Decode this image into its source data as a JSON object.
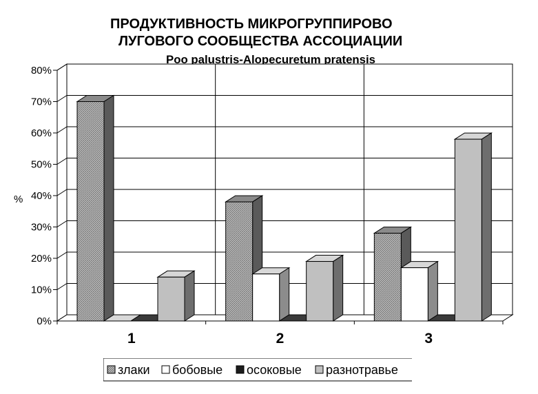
{
  "chart_data": {
    "type": "bar",
    "title_line1": "ПРОДУКТИВНОСТЬ МИКРОГРУППИРОВО",
    "title_line2": "ЛУГОВОГО СООБЩЕСТВА АССОЦИАЦИИ",
    "subtitle": "Poo palustris-Alopecuretum pratensis",
    "ylabel": "%",
    "xlabel": "",
    "ylim": [
      0,
      80
    ],
    "yticks": [
      "0%",
      "10%",
      "20%",
      "30%",
      "40%",
      "50%",
      "60%",
      "70%",
      "80%"
    ],
    "categories": [
      "1",
      "2",
      "3"
    ],
    "series": [
      {
        "name": "злаки",
        "values": [
          70,
          38,
          28
        ]
      },
      {
        "name": "бобовые",
        "values": [
          0,
          15,
          17
        ]
      },
      {
        "name": "осоковые",
        "values": [
          0,
          0,
          0
        ]
      },
      {
        "name": "разнотравье",
        "values": [
          14,
          19,
          58
        ]
      }
    ],
    "colors": {
      "злаки": "#a0a0a0",
      "бобовые": "#ffffff",
      "осоковые": "#1a1a1a",
      "разнотравье": "#c0c0c0"
    },
    "grid": true,
    "legend_position": "bottom"
  }
}
